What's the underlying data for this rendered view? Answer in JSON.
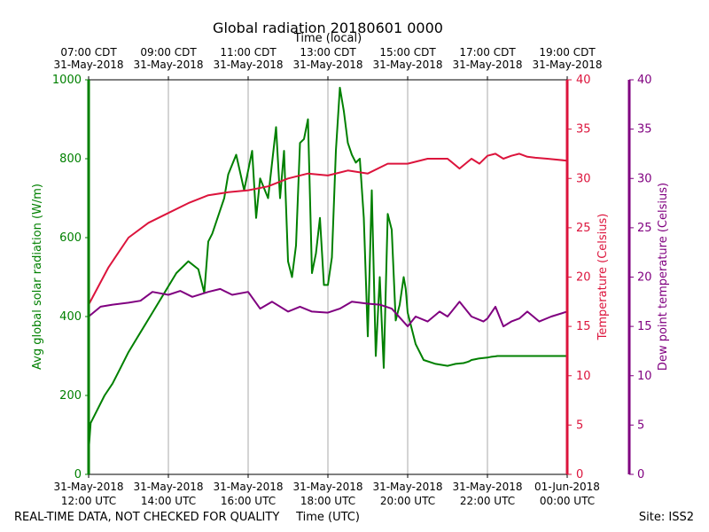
{
  "chart_data": {
    "type": "line",
    "title": "Global radiation 20180601 0000",
    "xlabel": "Time (UTC)",
    "x2label": "Time (local)",
    "footer_left": "REAL-TIME DATA, NOT CHECKED FOR QUALITY",
    "footer_right": "Site: ISS2",
    "x_hours_utc_range": [
      12,
      24
    ],
    "x_ticks_utc": [
      {
        "h": 12,
        "l1": "31-May-2018",
        "l2": "12:00 UTC"
      },
      {
        "h": 14,
        "l1": "31-May-2018",
        "l2": "14:00 UTC"
      },
      {
        "h": 16,
        "l1": "31-May-2018",
        "l2": "16:00 UTC"
      },
      {
        "h": 18,
        "l1": "31-May-2018",
        "l2": "18:00 UTC"
      },
      {
        "h": 20,
        "l1": "31-May-2018",
        "l2": "20:00 UTC"
      },
      {
        "h": 22,
        "l1": "31-May-2018",
        "l2": "22:00 UTC"
      },
      {
        "h": 24,
        "l1": "01-Jun-2018",
        "l2": "00:00 UTC"
      }
    ],
    "x_ticks_local": [
      {
        "h": 12,
        "l1": "07:00 CDT",
        "l2": "31-May-2018"
      },
      {
        "h": 14,
        "l1": "09:00 CDT",
        "l2": "31-May-2018"
      },
      {
        "h": 16,
        "l1": "11:00 CDT",
        "l2": "31-May-2018"
      },
      {
        "h": 18,
        "l1": "13:00 CDT",
        "l2": "31-May-2018"
      },
      {
        "h": 20,
        "l1": "15:00 CDT",
        "l2": "31-May-2018"
      },
      {
        "h": 22,
        "l1": "17:00 CDT",
        "l2": "31-May-2018"
      },
      {
        "h": 24,
        "l1": "19:00 CDT",
        "l2": "31-May-2018"
      }
    ],
    "y_radiation": {
      "label": "Avg global solar radiation (W/m)",
      "color": "#008000",
      "ylim": [
        0,
        1000
      ],
      "ticks": [
        0,
        200,
        400,
        600,
        800,
        1000
      ]
    },
    "y_temperature": {
      "label": "Temperature (Celsius)",
      "color": "#dc143c",
      "ylim": [
        0,
        40
      ],
      "ticks": [
        0,
        5,
        10,
        15,
        20,
        25,
        30,
        35,
        40
      ]
    },
    "y_dewpoint": {
      "label": "Dew point temperature (Celsius)",
      "color": "#800080",
      "ylim": [
        0,
        40
      ],
      "ticks": [
        0,
        5,
        10,
        15,
        20,
        25,
        30,
        35,
        40
      ]
    },
    "series": [
      {
        "name": "Avg global solar radiation",
        "axis": "radiation",
        "color": "#008000",
        "x": [
          12.0,
          12.05,
          12.2,
          12.4,
          12.6,
          12.8,
          13.0,
          13.3,
          13.6,
          13.9,
          14.2,
          14.5,
          14.75,
          14.9,
          15.0,
          15.1,
          15.2,
          15.3,
          15.4,
          15.5,
          15.7,
          15.9,
          16.1,
          16.2,
          16.3,
          16.5,
          16.7,
          16.8,
          16.9,
          17.0,
          17.1,
          17.2,
          17.3,
          17.4,
          17.5,
          17.6,
          17.7,
          17.8,
          17.9,
          18.0,
          18.1,
          18.2,
          18.3,
          18.4,
          18.5,
          18.6,
          18.7,
          18.8,
          18.9,
          19.0,
          19.1,
          19.2,
          19.3,
          19.4,
          19.5,
          19.6,
          19.7,
          19.8,
          19.9,
          19.95,
          20.0,
          20.2,
          20.4,
          20.7,
          21.0,
          21.2,
          21.4,
          21.5,
          21.55,
          21.6,
          21.7,
          21.75,
          21.8,
          21.9,
          22.0,
          22.05,
          22.1,
          22.2,
          22.25,
          22.3,
          22.4,
          22.5,
          22.6,
          22.7,
          22.8,
          22.9,
          23.0,
          23.2,
          23.4,
          23.6,
          23.8,
          24.0
        ],
        "y": [
          60,
          130,
          160,
          200,
          230,
          270,
          310,
          360,
          410,
          460,
          510,
          540,
          520,
          460,
          590,
          610,
          640,
          670,
          700,
          760,
          810,
          720,
          820,
          650,
          750,
          700,
          880,
          700,
          820,
          540,
          500,
          580,
          840,
          850,
          900,
          510,
          560,
          650,
          480,
          480,
          550,
          820,
          980,
          920,
          840,
          810,
          790,
          800,
          650,
          350,
          720,
          300,
          500,
          270,
          660,
          620,
          390,
          430,
          500,
          470,
          410,
          330,
          290,
          280,
          275,
          280,
          282,
          285,
          287,
          290,
          292,
          293,
          294,
          295,
          296,
          297,
          298,
          299,
          300,
          300,
          300,
          300,
          300,
          300,
          300,
          300,
          300,
          300,
          300,
          300,
          300,
          300
        ]
      },
      {
        "name": "Temperature",
        "axis": "temperature",
        "color": "#dc143c",
        "x": [
          12.0,
          12.5,
          13.0,
          13.5,
          14.0,
          14.5,
          15.0,
          15.5,
          16.0,
          16.5,
          17.0,
          17.5,
          18.0,
          18.5,
          19.0,
          19.5,
          20.0,
          20.5,
          21.0,
          21.3,
          21.6,
          21.8,
          22.0,
          22.2,
          22.4,
          22.6,
          22.8,
          23.0,
          23.2,
          23.5,
          24.0
        ],
        "y": [
          17.2,
          21.0,
          24.0,
          25.5,
          26.5,
          27.5,
          28.3,
          28.6,
          28.8,
          29.2,
          30.0,
          30.5,
          30.3,
          30.8,
          30.5,
          31.5,
          31.5,
          32.0,
          32.0,
          31.0,
          32.0,
          31.5,
          32.3,
          32.5,
          32.0,
          32.3,
          32.5,
          32.2,
          32.1,
          32.0,
          31.8
        ]
      },
      {
        "name": "Dew point temperature",
        "axis": "dewpoint",
        "color": "#800080",
        "x": [
          12.0,
          12.3,
          12.6,
          13.0,
          13.3,
          13.6,
          14.0,
          14.3,
          14.6,
          15.0,
          15.3,
          15.6,
          16.0,
          16.3,
          16.6,
          17.0,
          17.3,
          17.6,
          18.0,
          18.3,
          18.6,
          19.0,
          19.3,
          19.6,
          20.0,
          20.2,
          20.5,
          20.8,
          21.0,
          21.3,
          21.6,
          21.9,
          22.0,
          22.2,
          22.4,
          22.6,
          22.8,
          23.0,
          23.3,
          23.6,
          24.0
        ],
        "y": [
          16.0,
          17.0,
          17.2,
          17.4,
          17.6,
          18.5,
          18.2,
          18.6,
          18.0,
          18.5,
          18.8,
          18.2,
          18.5,
          16.8,
          17.5,
          16.5,
          17.0,
          16.5,
          16.4,
          16.8,
          17.5,
          17.3,
          17.2,
          16.8,
          15.0,
          16.0,
          15.5,
          16.5,
          16.0,
          17.5,
          16.0,
          15.5,
          15.8,
          17.0,
          15.0,
          15.5,
          15.8,
          16.5,
          15.5,
          16.0,
          16.5
        ]
      }
    ]
  }
}
